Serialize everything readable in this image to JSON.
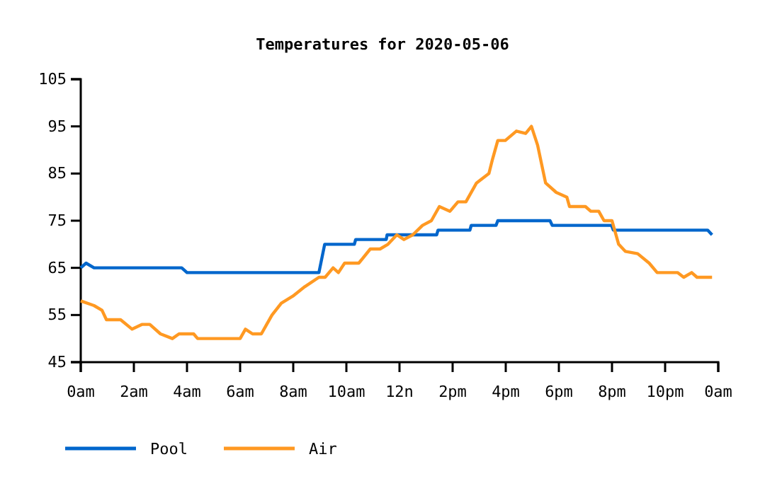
{
  "chart_data": {
    "type": "line",
    "title": "Temperatures for 2020-05-06",
    "xlim": [
      "2020-05-06T00:00",
      "2020-05-07T00:00"
    ],
    "xticks": [
      {
        "value": "2020-05-06T00:00",
        "label": "0am"
      },
      {
        "value": "2020-05-06T02:00",
        "label": "2am"
      },
      {
        "value": "2020-05-06T04:00",
        "label": "4am"
      },
      {
        "value": "2020-05-06T06:00",
        "label": "6am"
      },
      {
        "value": "2020-05-06T08:00",
        "label": "8am"
      },
      {
        "value": "2020-05-06T10:00",
        "label": "10am"
      },
      {
        "value": "2020-05-06T12:00",
        "label": "12n"
      },
      {
        "value": "2020-05-06T14:00",
        "label": "2pm"
      },
      {
        "value": "2020-05-06T16:00",
        "label": "4pm"
      },
      {
        "value": "2020-05-06T18:00",
        "label": "6pm"
      },
      {
        "value": "2020-05-06T20:00",
        "label": "8pm"
      },
      {
        "value": "2020-05-06T22:00",
        "label": "10pm"
      },
      {
        "value": "2020-05-07T00:00",
        "label": "0am"
      }
    ],
    "ylim": [
      45,
      105
    ],
    "yticks": [
      45,
      55,
      65,
      75,
      85,
      95,
      105
    ],
    "grid": false,
    "legend": "bottom",
    "marker": "none",
    "line_style": "solid",
    "series": [
      {
        "name": "Pool",
        "color": "#0066cc",
        "x": [
          "2020-05-06T00:00",
          "2020-05-06T00:12",
          "2020-05-06T00:30",
          "2020-05-06T03:48",
          "2020-05-06T04:00",
          "2020-05-06T08:58",
          "2020-05-06T09:11",
          "2020-05-06T10:18",
          "2020-05-06T10:21",
          "2020-05-06T11:30",
          "2020-05-06T11:32",
          "2020-05-06T13:24",
          "2020-05-06T13:27",
          "2020-05-06T14:39",
          "2020-05-06T14:42",
          "2020-05-06T15:38",
          "2020-05-06T15:42",
          "2020-05-06T17:40",
          "2020-05-06T17:45",
          "2020-05-06T19:59",
          "2020-05-06T20:03",
          "2020-05-06T23:36",
          "2020-05-06T23:46"
        ],
        "values": [
          65,
          66,
          65,
          65,
          64,
          64,
          70,
          70,
          71,
          71,
          72,
          72,
          73,
          73,
          74,
          74,
          75,
          75,
          74,
          74,
          73,
          73,
          72
        ]
      },
      {
        "name": "Air",
        "color": "#ff9922",
        "x": [
          "2020-05-06T00:00",
          "2020-05-06T00:30",
          "2020-05-06T00:48",
          "2020-05-06T00:58",
          "2020-05-06T01:30",
          "2020-05-06T01:56",
          "2020-05-06T02:18",
          "2020-05-06T02:36",
          "2020-05-06T03:00",
          "2020-05-06T03:27",
          "2020-05-06T03:42",
          "2020-05-06T04:15",
          "2020-05-06T04:24",
          "2020-05-06T06:00",
          "2020-05-06T06:12",
          "2020-05-06T06:28",
          "2020-05-06T06:48",
          "2020-05-06T07:00",
          "2020-05-06T07:12",
          "2020-05-06T07:33",
          "2020-05-06T07:59",
          "2020-05-06T08:26",
          "2020-05-06T08:58",
          "2020-05-06T09:12",
          "2020-05-06T09:30",
          "2020-05-06T09:42",
          "2020-05-06T09:56",
          "2020-05-06T10:28",
          "2020-05-06T10:54",
          "2020-05-06T11:16",
          "2020-05-06T11:34",
          "2020-05-06T11:54",
          "2020-05-06T12:10",
          "2020-05-06T12:30",
          "2020-05-06T12:52",
          "2020-05-06T13:12",
          "2020-05-06T13:30",
          "2020-05-06T13:54",
          "2020-05-06T14:12",
          "2020-05-06T14:30",
          "2020-05-06T14:54",
          "2020-05-06T15:22",
          "2020-05-06T15:30",
          "2020-05-06T15:42",
          "2020-05-06T15:59",
          "2020-05-06T16:24",
          "2020-05-06T16:45",
          "2020-05-06T16:58",
          "2020-05-06T17:12",
          "2020-05-06T17:30",
          "2020-05-06T17:54",
          "2020-05-06T18:18",
          "2020-05-06T18:24",
          "2020-05-06T19:00",
          "2020-05-06T19:12",
          "2020-05-06T19:30",
          "2020-05-06T19:42",
          "2020-05-06T20:00",
          "2020-05-06T20:15",
          "2020-05-06T20:30",
          "2020-05-06T20:58",
          "2020-05-06T21:24",
          "2020-05-06T21:42",
          "2020-05-06T22:28",
          "2020-05-06T22:42",
          "2020-05-06T23:00",
          "2020-05-06T23:12",
          "2020-05-06T23:46"
        ],
        "values": [
          58,
          57,
          56,
          54,
          54,
          52,
          53,
          53,
          51,
          50,
          51,
          51,
          50,
          50,
          52,
          51,
          51,
          53,
          55,
          57.5,
          59,
          61,
          63,
          63,
          65,
          64,
          66,
          66,
          69,
          69,
          70,
          72,
          71,
          72,
          74,
          75,
          78,
          77,
          79,
          79,
          83,
          85,
          88,
          92,
          92,
          94,
          93.5,
          95,
          91,
          83,
          81,
          80,
          78,
          78,
          77,
          77,
          75,
          75,
          70,
          68.5,
          68,
          66,
          64,
          64,
          63,
          64,
          63,
          63
        ]
      }
    ]
  }
}
